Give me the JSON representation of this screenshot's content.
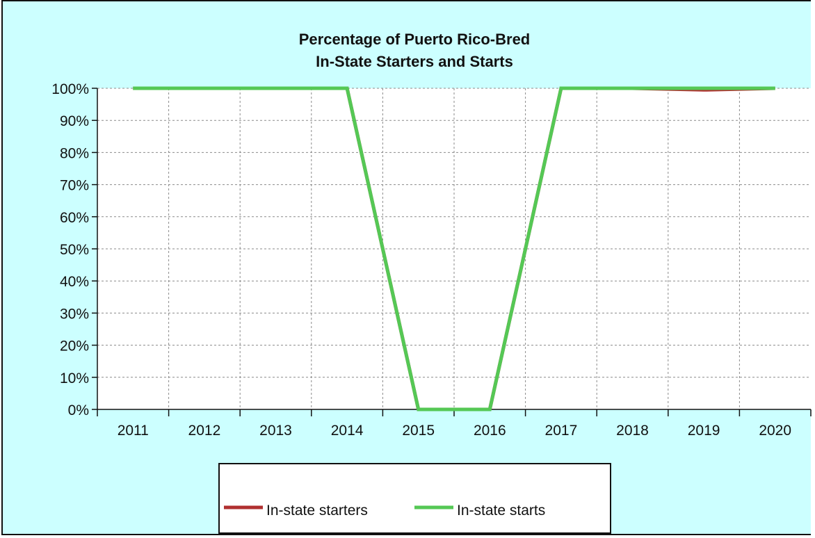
{
  "chart_data": {
    "type": "line",
    "title_lines": [
      "Percentage of Puerto Rico-Bred",
      "In-State Starters and Starts"
    ],
    "x": [
      "2011",
      "2012",
      "2013",
      "2014",
      "2015",
      "2016",
      "2017",
      "2018",
      "2019",
      "2020"
    ],
    "y_ticks": [
      "0%",
      "10%",
      "20%",
      "30%",
      "40%",
      "50%",
      "60%",
      "70%",
      "80%",
      "90%",
      "100%"
    ],
    "ylim": [
      0,
      100
    ],
    "grid": true,
    "legend_position": "bottom",
    "series": [
      {
        "name": "In-state starters",
        "color": "#b03030",
        "values": [
          100,
          100,
          100,
          100,
          0,
          0,
          100,
          100,
          99.5,
          100
        ]
      },
      {
        "name": "In-state starts",
        "color": "#55c855",
        "values": [
          100,
          100,
          100,
          100,
          0,
          0,
          100,
          100,
          100,
          100
        ]
      }
    ]
  }
}
